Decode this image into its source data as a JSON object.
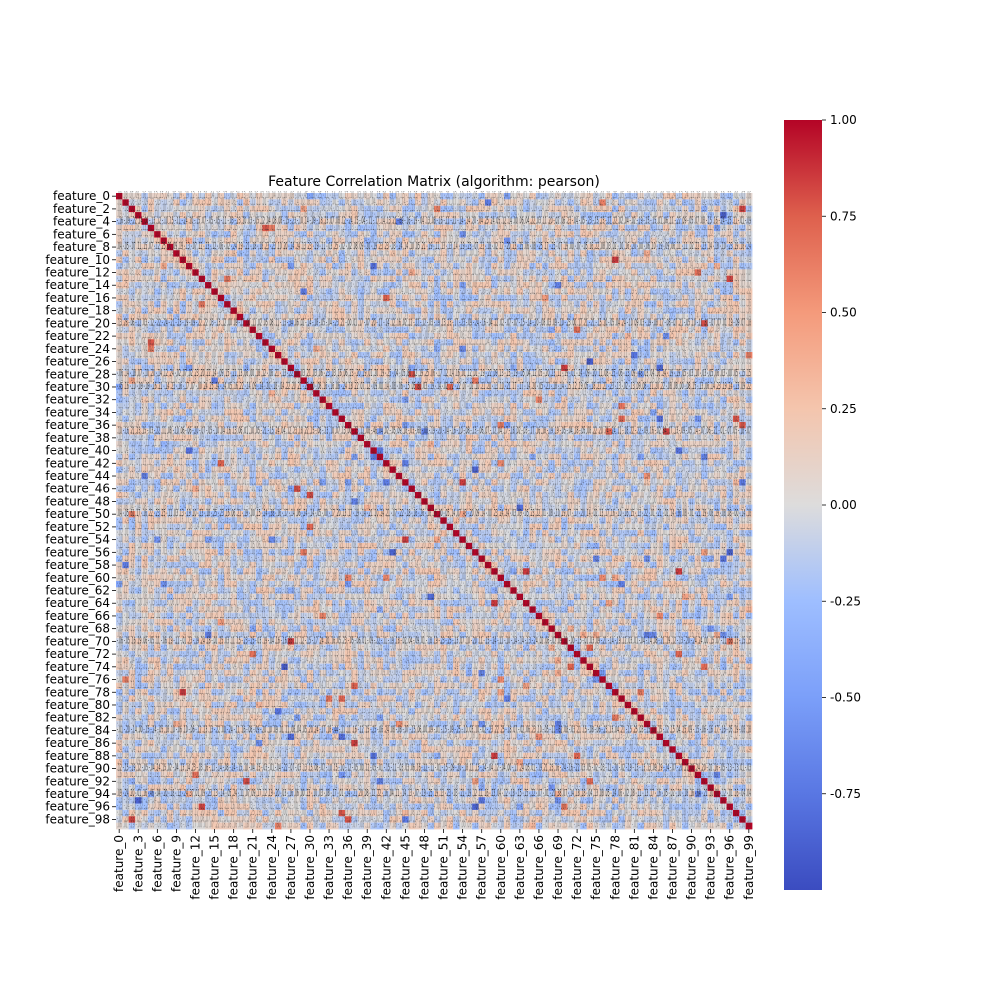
{
  "chart_data": {
    "type": "heatmap",
    "title": "Feature Correlation Matrix (algorithm: pearson)",
    "xlabel": "",
    "ylabel": "",
    "row_labels": [
      "feature_0",
      "feature_2",
      "feature_4",
      "feature_6",
      "feature_8",
      "feature_10",
      "feature_12",
      "feature_14",
      "feature_16",
      "feature_18",
      "feature_20",
      "feature_22",
      "feature_24",
      "feature_26",
      "feature_28",
      "feature_30",
      "feature_32",
      "feature_34",
      "feature_36",
      "feature_38",
      "feature_40",
      "feature_42",
      "feature_44",
      "feature_46",
      "feature_48",
      "feature_50",
      "feature_52",
      "feature_54",
      "feature_56",
      "feature_58",
      "feature_60",
      "feature_62",
      "feature_64",
      "feature_66",
      "feature_68",
      "feature_70",
      "feature_72",
      "feature_74",
      "feature_76",
      "feature_78",
      "feature_80",
      "feature_82",
      "feature_84",
      "feature_86",
      "feature_88",
      "feature_90",
      "feature_92",
      "feature_94",
      "feature_96",
      "feature_98"
    ],
    "col_labels": [
      "feature_0",
      "feature_3",
      "feature_6",
      "feature_9",
      "feature_12",
      "feature_15",
      "feature_18",
      "feature_21",
      "feature_24",
      "feature_27",
      "feature_30",
      "feature_33",
      "feature_36",
      "feature_39",
      "feature_42",
      "feature_45",
      "feature_48",
      "feature_51",
      "feature_54",
      "feature_57",
      "feature_60",
      "feature_63",
      "feature_66",
      "feature_69",
      "feature_72",
      "feature_75",
      "feature_78",
      "feature_81",
      "feature_84",
      "feature_87",
      "feature_90",
      "feature_93",
      "feature_96",
      "feature_99"
    ],
    "matrix_size": 100,
    "value_range": [
      -1,
      1
    ],
    "colormap": "coolwarm",
    "colorbar": {
      "ticks": [
        "1.00",
        "0.75",
        "0.50",
        "0.25",
        "0.00",
        "-0.25",
        "-0.50",
        "-0.75"
      ],
      "tick_values": [
        1.0,
        0.75,
        0.5,
        0.25,
        0.0,
        -0.25,
        -0.5,
        -0.75
      ],
      "min": -1.0,
      "max": 1.0
    },
    "annotated": true,
    "grid": false,
    "colors": {
      "low": "#3b4cc0",
      "mid": "#dddddd",
      "high": "#b40426",
      "annotation": "#262626"
    }
  }
}
